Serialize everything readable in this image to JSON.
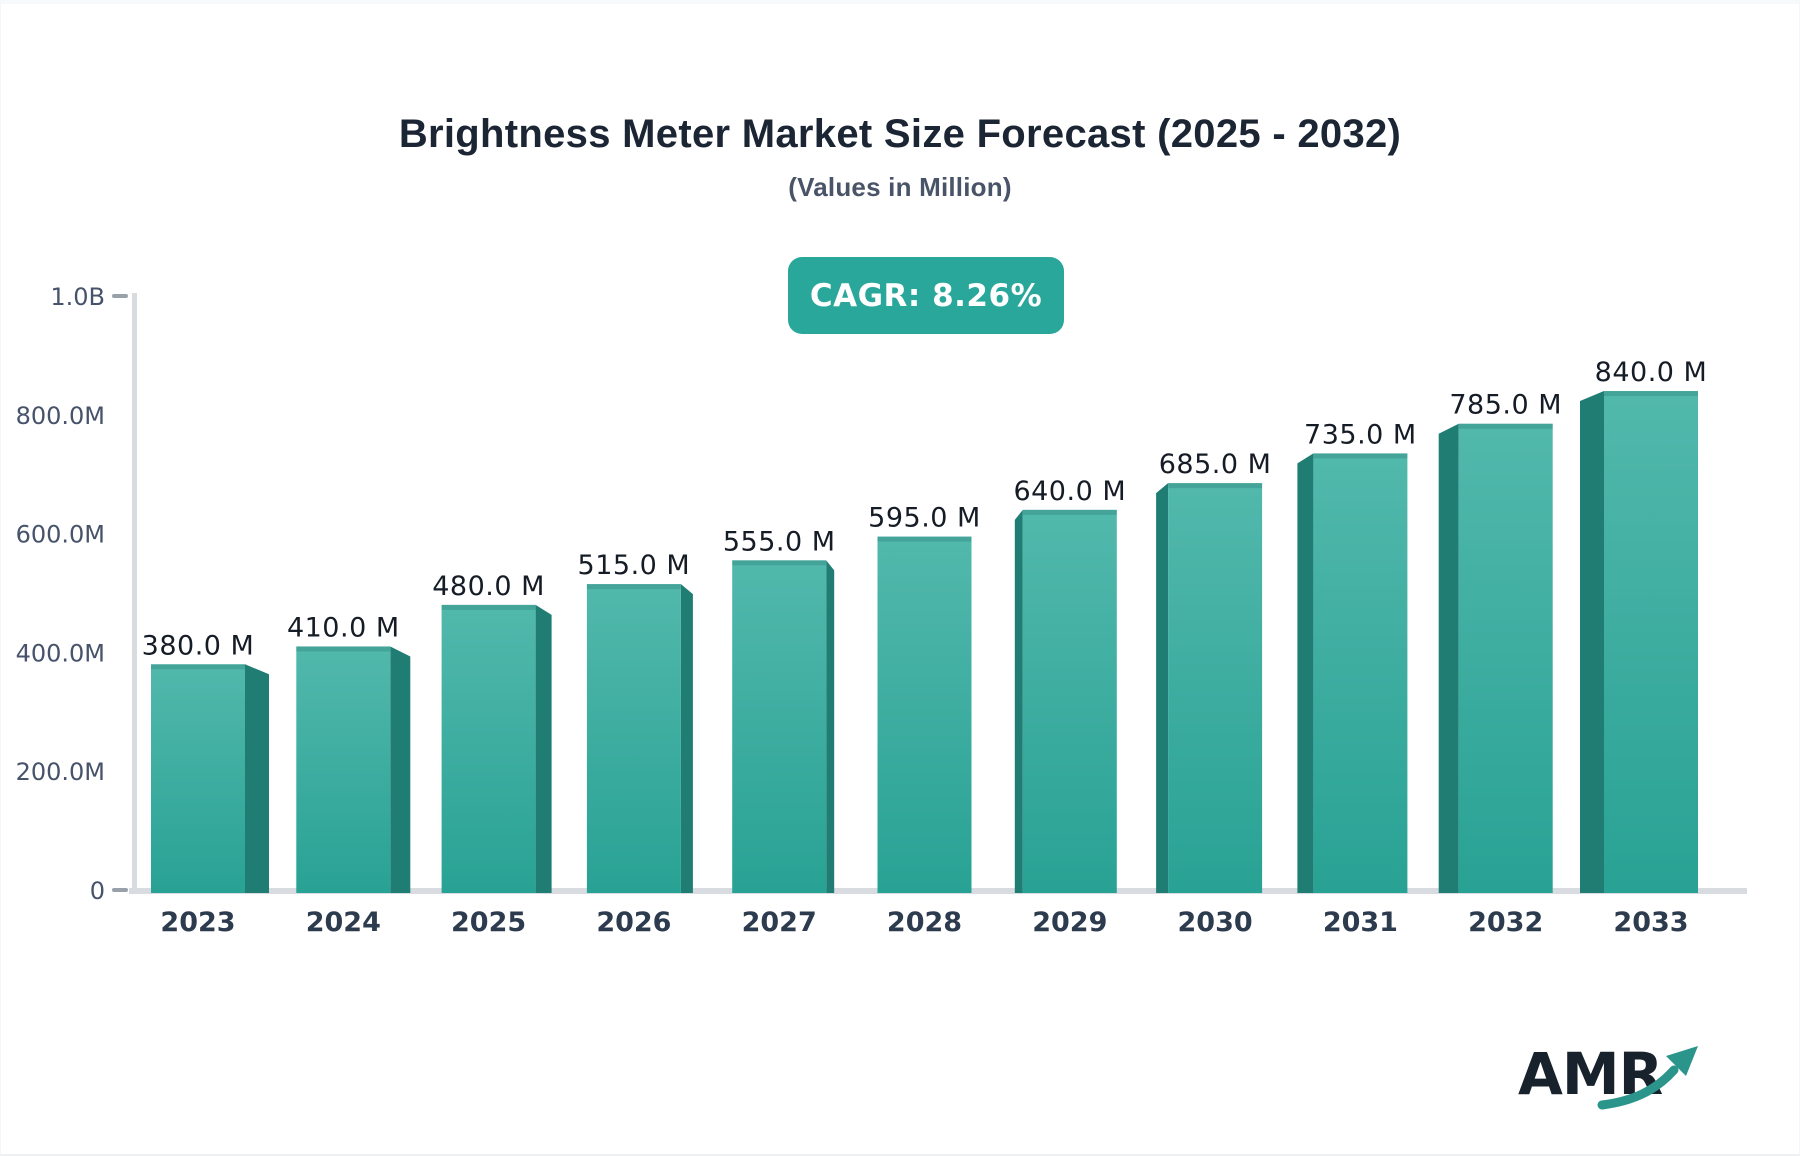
{
  "page": {
    "title": "Brightness Meter Market Size Forecast (2025 - 2032)",
    "subtitle": "(Values in Million)",
    "cagr_badge": "CAGR: 8.26%"
  },
  "chart_data": {
    "type": "bar",
    "title": "Brightness Meter Market Size Forecast (2025 - 2032)",
    "subtitle": "(Values in Million)",
    "annotation": "CAGR: 8.26%",
    "categories": [
      "2023",
      "2024",
      "2025",
      "2026",
      "2027",
      "2028",
      "2029",
      "2030",
      "2031",
      "2032",
      "2033"
    ],
    "values": [
      380,
      410,
      480,
      515,
      555,
      595,
      640,
      685,
      735,
      785,
      840
    ],
    "value_labels": [
      "380.0 M",
      "410.0 M",
      "480.0 M",
      "515.0 M",
      "555.0 M",
      "595.0 M",
      "640.0 M",
      "685.0 M",
      "735.0 M",
      "785.0 M",
      "840.0 M"
    ],
    "values_unit": "Million",
    "xlabel": "",
    "ylabel": "",
    "y_axis": {
      "tick_labels": [
        "0",
        "200.0M",
        "400.0M",
        "600.0M",
        "800.0M",
        "1.0B"
      ],
      "tick_values": [
        0,
        200,
        400,
        600,
        800,
        1000
      ],
      "min": 0,
      "max": 1000
    },
    "grid": false,
    "bar_style": "3d-extruded",
    "colors": {
      "bar_top": "#52b8ac",
      "bar_bottom": "#28a294",
      "bar_side": "#1f7d73",
      "bar_bevel": "rgba(16,94,85,0.22)",
      "axis_line": "#d8dce1",
      "tick_dash": "#98a0aa",
      "value_label": "#151c26",
      "year_label": "#2d3b4f",
      "y_label": "#47536a",
      "badge_bg": "#29a79b",
      "badge_text": "#ffffff",
      "title": "#1b2533",
      "subtitle": "#4a5468",
      "logo_text": "#17222d",
      "logo_arrow": "#2b958b"
    }
  },
  "logo": {
    "text": "AMR"
  }
}
